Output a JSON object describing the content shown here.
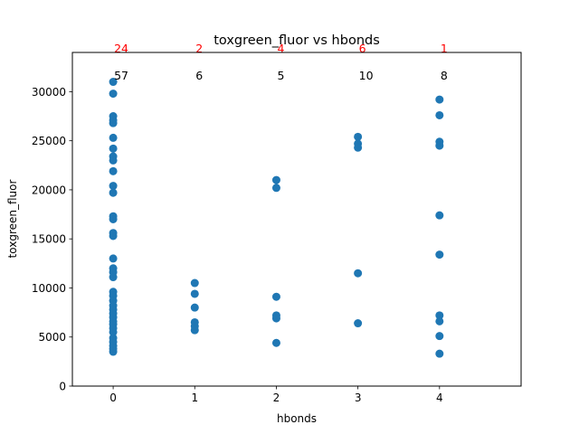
{
  "chart_data": {
    "type": "scatter",
    "title": "toxgreen_fluor vs hbonds",
    "xlabel": "hbonds",
    "ylabel": "toxgreen_fluor",
    "xlim": [
      -0.5,
      5.0
    ],
    "ylim": [
      0,
      34000
    ],
    "xticks": [
      0,
      1,
      2,
      3,
      4
    ],
    "yticks": [
      0,
      5000,
      10000,
      15000,
      20000,
      25000,
      30000
    ],
    "ytick_labels": [
      "0",
      "5000",
      "10000",
      "15000",
      "20000",
      "25000",
      "30000"
    ],
    "grid": false,
    "marker_color": "#1f77b4",
    "top_annotation_color": "#ff0000",
    "annotation_color": "#000000",
    "top_annotations": [
      {
        "x": 0,
        "text": "24"
      },
      {
        "x": 1,
        "text": "2"
      },
      {
        "x": 2,
        "text": "4"
      },
      {
        "x": 3,
        "text": "6"
      },
      {
        "x": 4,
        "text": "1"
      }
    ],
    "annotations": [
      {
        "x": 0,
        "text": "57"
      },
      {
        "x": 1,
        "text": "6"
      },
      {
        "x": 2,
        "text": "5"
      },
      {
        "x": 3,
        "text": "10"
      },
      {
        "x": 4,
        "text": "8"
      }
    ],
    "points": [
      {
        "x": 0,
        "y": 31000
      },
      {
        "x": 0,
        "y": 29800
      },
      {
        "x": 0,
        "y": 27500
      },
      {
        "x": 0,
        "y": 27100
      },
      {
        "x": 0,
        "y": 26800
      },
      {
        "x": 0,
        "y": 25300
      },
      {
        "x": 0,
        "y": 24200
      },
      {
        "x": 0,
        "y": 23400
      },
      {
        "x": 0,
        "y": 23000
      },
      {
        "x": 0,
        "y": 21900
      },
      {
        "x": 0,
        "y": 20400
      },
      {
        "x": 0,
        "y": 19700
      },
      {
        "x": 0,
        "y": 17300
      },
      {
        "x": 0,
        "y": 17000
      },
      {
        "x": 0,
        "y": 15600
      },
      {
        "x": 0,
        "y": 15300
      },
      {
        "x": 0,
        "y": 13000
      },
      {
        "x": 0,
        "y": 12000
      },
      {
        "x": 0,
        "y": 11600
      },
      {
        "x": 0,
        "y": 11100
      },
      {
        "x": 0,
        "y": 9600
      },
      {
        "x": 0,
        "y": 9200
      },
      {
        "x": 0,
        "y": 8700
      },
      {
        "x": 0,
        "y": 8200
      },
      {
        "x": 0,
        "y": 7800
      },
      {
        "x": 0,
        "y": 7400
      },
      {
        "x": 0,
        "y": 7000
      },
      {
        "x": 0,
        "y": 6600
      },
      {
        "x": 0,
        "y": 6300
      },
      {
        "x": 0,
        "y": 5900
      },
      {
        "x": 0,
        "y": 5500
      },
      {
        "x": 0,
        "y": 4900
      },
      {
        "x": 0,
        "y": 4500
      },
      {
        "x": 0,
        "y": 4100
      },
      {
        "x": 0,
        "y": 3800
      },
      {
        "x": 0,
        "y": 3500
      },
      {
        "x": 1,
        "y": 10500
      },
      {
        "x": 1,
        "y": 9400
      },
      {
        "x": 1,
        "y": 8000
      },
      {
        "x": 1,
        "y": 6500
      },
      {
        "x": 1,
        "y": 6100
      },
      {
        "x": 1,
        "y": 5700
      },
      {
        "x": 2,
        "y": 21000
      },
      {
        "x": 2,
        "y": 20200
      },
      {
        "x": 2,
        "y": 9100
      },
      {
        "x": 2,
        "y": 7200
      },
      {
        "x": 2,
        "y": 6900
      },
      {
        "x": 2,
        "y": 4400
      },
      {
        "x": 3,
        "y": 25400
      },
      {
        "x": 3,
        "y": 24700
      },
      {
        "x": 3,
        "y": 24300
      },
      {
        "x": 3,
        "y": 11500
      },
      {
        "x": 3,
        "y": 6400
      },
      {
        "x": 4,
        "y": 29200
      },
      {
        "x": 4,
        "y": 27600
      },
      {
        "x": 4,
        "y": 24900
      },
      {
        "x": 4,
        "y": 24500
      },
      {
        "x": 4,
        "y": 17400
      },
      {
        "x": 4,
        "y": 13400
      },
      {
        "x": 4,
        "y": 7200
      },
      {
        "x": 4,
        "y": 6600
      },
      {
        "x": 4,
        "y": 5100
      },
      {
        "x": 4,
        "y": 3300
      }
    ]
  }
}
